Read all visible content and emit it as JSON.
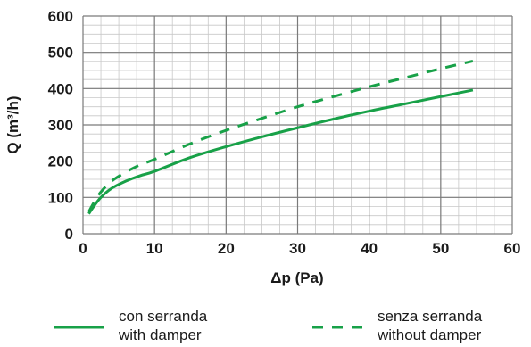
{
  "chart_data": {
    "type": "line",
    "xlabel": "Δp (Pa)",
    "ylabel": "Q (m³/h)",
    "xlim": [
      0,
      60
    ],
    "ylim": [
      0,
      600
    ],
    "x_ticks": [
      0,
      10,
      20,
      30,
      40,
      50,
      60
    ],
    "y_ticks": [
      0,
      100,
      200,
      300,
      400,
      500,
      600
    ],
    "grid": true,
    "legend_position": "bottom",
    "series": [
      {
        "name_line1": "con serranda",
        "name_line2": "with damper",
        "style": "solid",
        "color": "#18a148",
        "x": [
          0.8,
          1.5,
          2.5,
          4,
          6,
          8,
          10,
          15,
          20,
          25,
          30,
          35,
          40,
          45,
          50,
          54.5
        ],
        "y": [
          55,
          75,
          100,
          125,
          145,
          160,
          172,
          210,
          240,
          267,
          292,
          316,
          338,
          358,
          378,
          396
        ]
      },
      {
        "name_line1": "senza serranda",
        "name_line2": "without damper",
        "style": "dashed",
        "color": "#18a148",
        "x": [
          0.8,
          1.5,
          2.5,
          4,
          6,
          8,
          10,
          15,
          20,
          25,
          30,
          35,
          40,
          45,
          50,
          54.5
        ],
        "y": [
          60,
          85,
          115,
          145,
          170,
          190,
          205,
          248,
          285,
          318,
          350,
          378,
          405,
          430,
          455,
          476
        ]
      }
    ]
  }
}
